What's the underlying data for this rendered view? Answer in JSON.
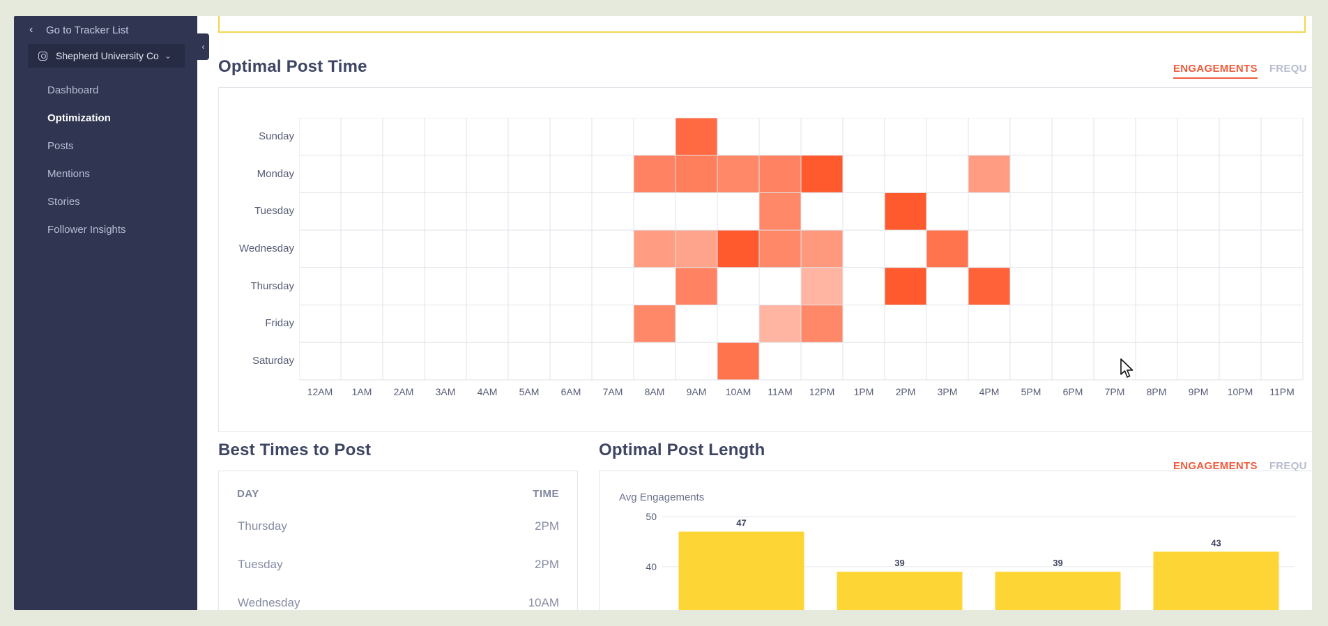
{
  "sidebar": {
    "back_label": "Go to Tracker List",
    "account_name": "Shepherd University Co",
    "items": [
      {
        "label": "Dashboard",
        "active": false
      },
      {
        "label": "Optimization",
        "active": true
      },
      {
        "label": "Posts",
        "active": false
      },
      {
        "label": "Mentions",
        "active": false
      },
      {
        "label": "Stories",
        "active": false
      },
      {
        "label": "Follower Insights",
        "active": false
      }
    ]
  },
  "optimal_post_time": {
    "title": "Optimal Post Time",
    "tabs": [
      "ENGAGEMENTS",
      "FREQU"
    ]
  },
  "best_times": {
    "title": "Best Times to Post",
    "head_day": "DAY",
    "head_time": "TIME",
    "rows": [
      {
        "day": "Thursday",
        "time": "2PM"
      },
      {
        "day": "Tuesday",
        "time": "2PM"
      },
      {
        "day": "Wednesday",
        "time": "10AM"
      }
    ]
  },
  "optimal_post_length": {
    "title": "Optimal Post Length",
    "tabs": [
      "ENGAGEMENTS",
      "FREQU"
    ]
  },
  "colors": {
    "sidebar_bg": "#303552",
    "accent": "#ef5a3b",
    "bar": "#fdd534",
    "heat_max": "#ff5a2e"
  },
  "chart_data": [
    {
      "type": "heatmap",
      "rows": [
        "Sunday",
        "Monday",
        "Tuesday",
        "Wednesday",
        "Thursday",
        "Friday",
        "Saturday"
      ],
      "columns": [
        "12AM",
        "1AM",
        "2AM",
        "3AM",
        "4AM",
        "5AM",
        "6AM",
        "7AM",
        "8AM",
        "9AM",
        "10AM",
        "11AM",
        "12PM",
        "1PM",
        "2PM",
        "3PM",
        "4PM",
        "5PM",
        "6PM",
        "7PM",
        "8PM",
        "9PM",
        "10PM",
        "11PM"
      ],
      "cells": [
        {
          "row": "Sunday",
          "col": "9AM",
          "value": 0.9
        },
        {
          "row": "Monday",
          "col": "8AM",
          "value": 0.75
        },
        {
          "row": "Monday",
          "col": "9AM",
          "value": 0.78
        },
        {
          "row": "Monday",
          "col": "10AM",
          "value": 0.72
        },
        {
          "row": "Monday",
          "col": "11AM",
          "value": 0.75
        },
        {
          "row": "Monday",
          "col": "12PM",
          "value": 1.0
        },
        {
          "row": "Monday",
          "col": "4PM",
          "value": 0.6
        },
        {
          "row": "Tuesday",
          "col": "11AM",
          "value": 0.72
        },
        {
          "row": "Tuesday",
          "col": "2PM",
          "value": 1.0
        },
        {
          "row": "Wednesday",
          "col": "8AM",
          "value": 0.6
        },
        {
          "row": "Wednesday",
          "col": "9AM",
          "value": 0.55
        },
        {
          "row": "Wednesday",
          "col": "10AM",
          "value": 1.0
        },
        {
          "row": "Wednesday",
          "col": "11AM",
          "value": 0.72
        },
        {
          "row": "Wednesday",
          "col": "12PM",
          "value": 0.62
        },
        {
          "row": "Wednesday",
          "col": "3PM",
          "value": 0.85
        },
        {
          "row": "Thursday",
          "col": "9AM",
          "value": 0.75
        },
        {
          "row": "Thursday",
          "col": "12PM",
          "value": 0.45
        },
        {
          "row": "Thursday",
          "col": "2PM",
          "value": 1.0
        },
        {
          "row": "Thursday",
          "col": "4PM",
          "value": 0.95
        },
        {
          "row": "Friday",
          "col": "8AM",
          "value": 0.72
        },
        {
          "row": "Friday",
          "col": "11AM",
          "value": 0.45
        },
        {
          "row": "Friday",
          "col": "12PM",
          "value": 0.72
        },
        {
          "row": "Saturday",
          "col": "10AM",
          "value": 0.85
        }
      ]
    },
    {
      "type": "bar",
      "ylabel": "Avg Engagements",
      "yticks": [
        40,
        50
      ],
      "ylim": [
        30,
        50
      ],
      "values": [
        47,
        39,
        39,
        43
      ]
    }
  ]
}
